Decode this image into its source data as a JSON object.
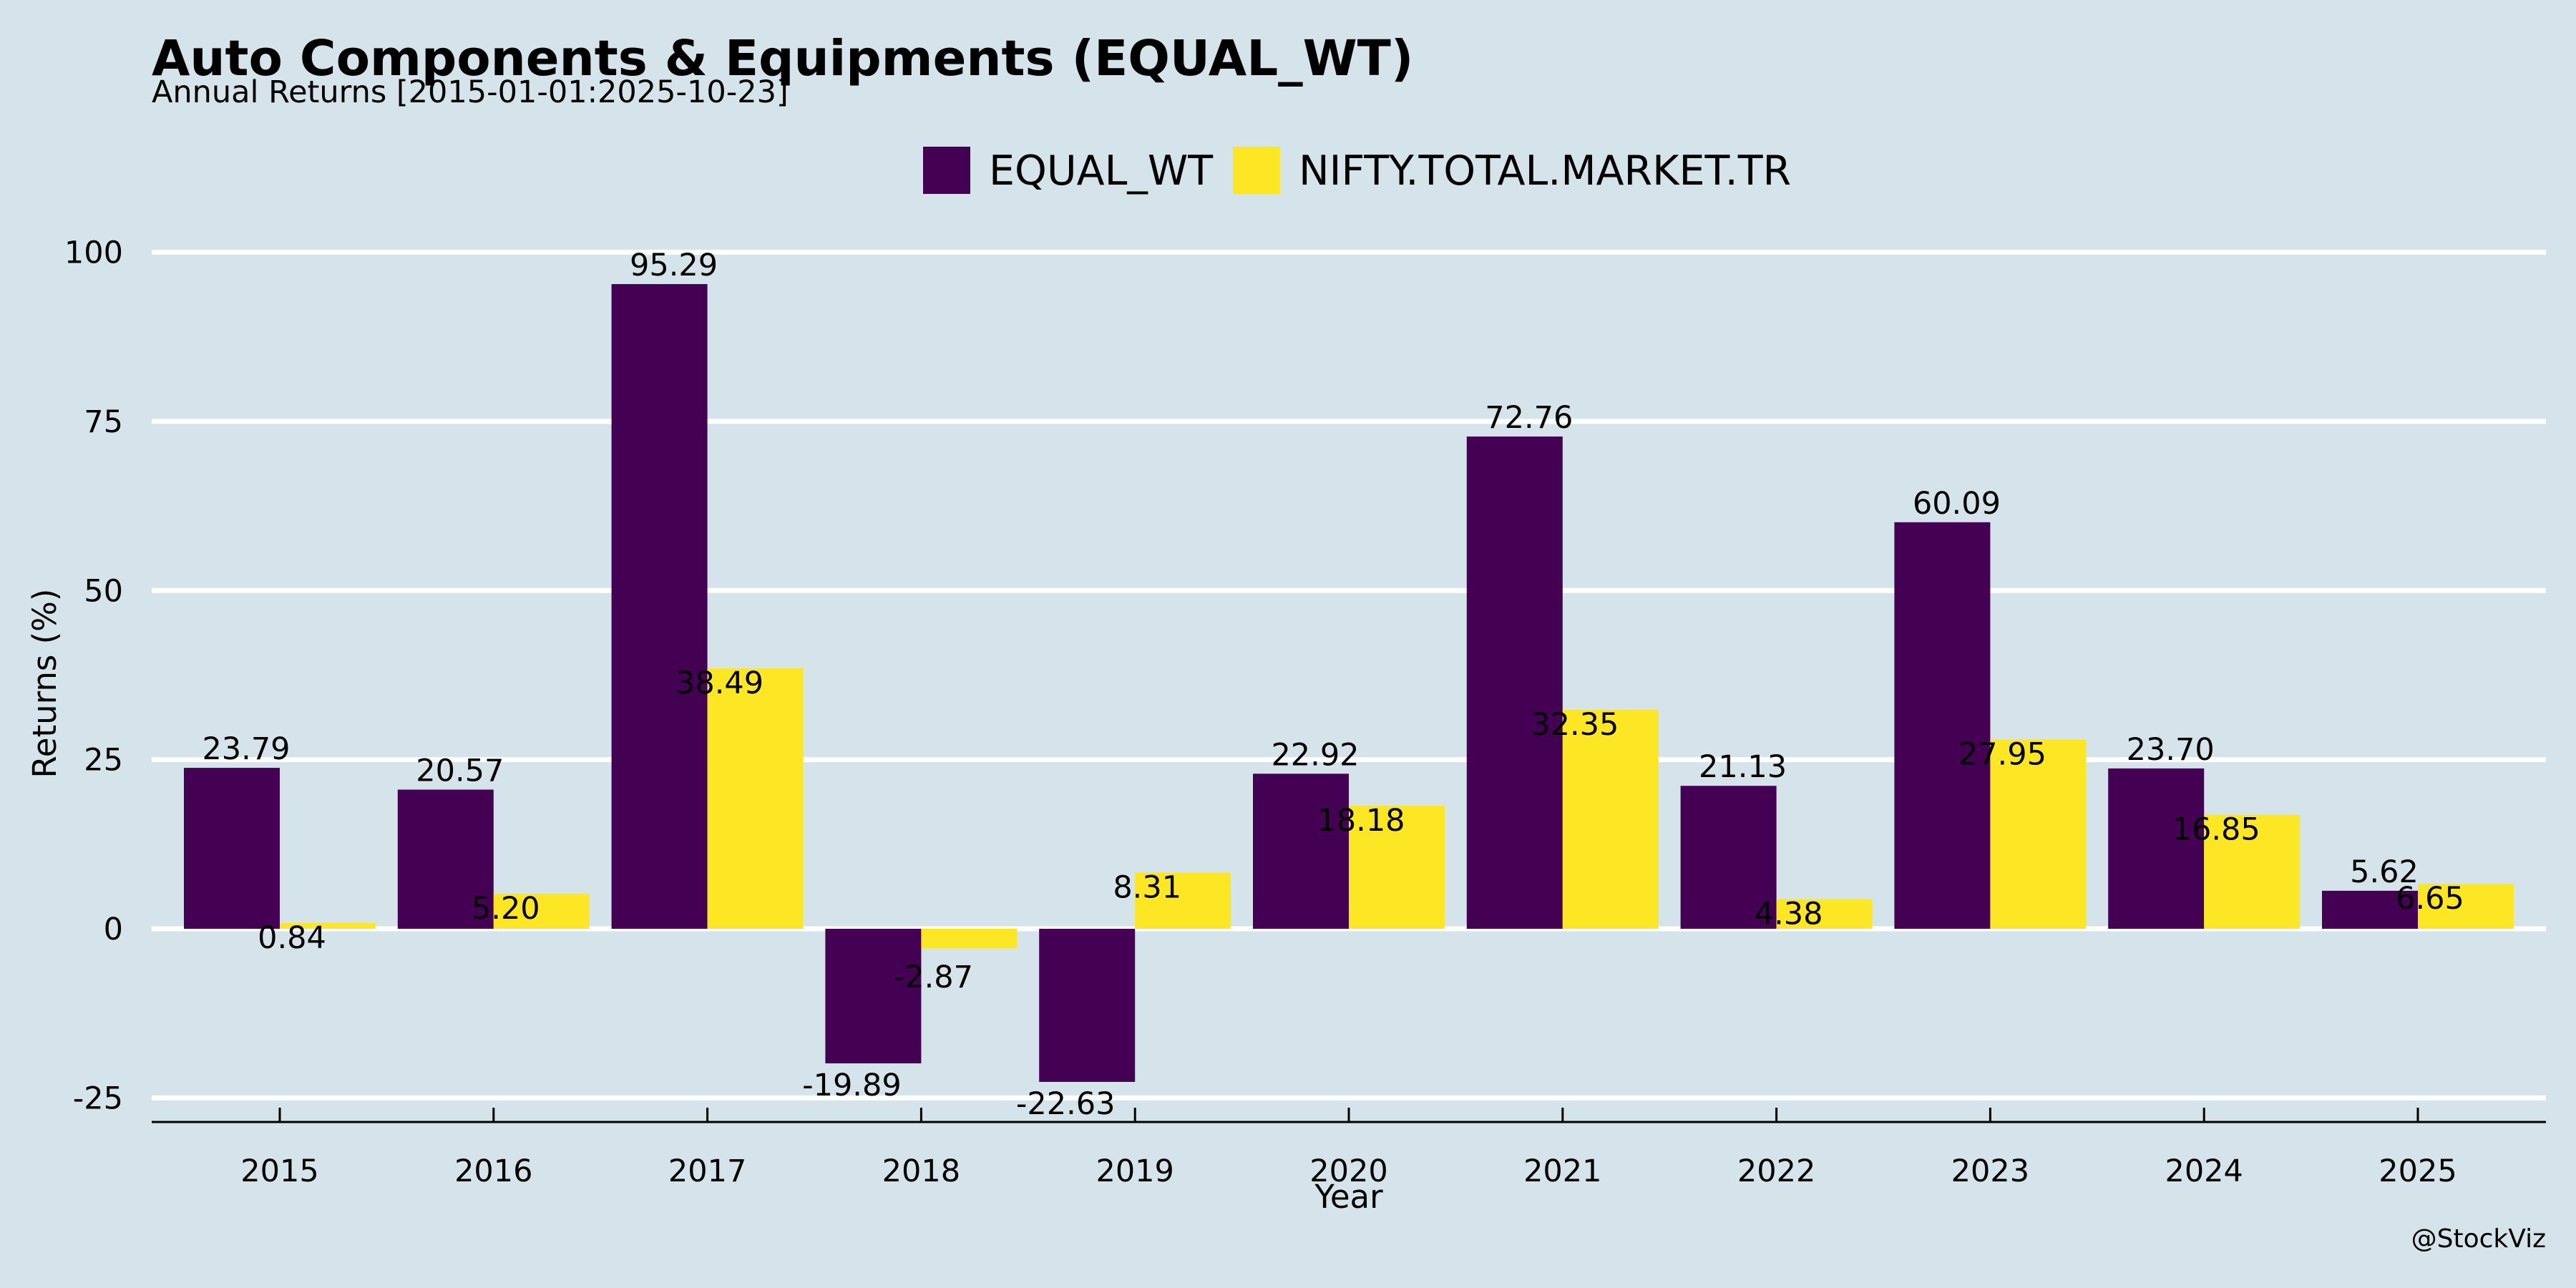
{
  "colors": {
    "background": "#d5e4eb",
    "series_equal_wt": "#440154",
    "series_nifty": "#fde725",
    "grid": "#ffffff"
  },
  "caption": "@StockViz",
  "chart_data": {
    "type": "bar",
    "title": "Auto Components & Equipments (EQUAL_WT)",
    "subtitle": "Annual Returns [2015-01-01:2025-10-23]",
    "xlabel": "Year",
    "ylabel": "Returns (%)",
    "ylim": [
      -28,
      100
    ],
    "yticks": [
      -25,
      0,
      25,
      50,
      75,
      100
    ],
    "grid": true,
    "legend_position": "top-center",
    "categories": [
      "2015",
      "2016",
      "2017",
      "2018",
      "2019",
      "2020",
      "2021",
      "2022",
      "2023",
      "2024",
      "2025"
    ],
    "series": [
      {
        "name": "EQUAL_WT",
        "color": "#440154",
        "values": [
          23.79,
          20.57,
          95.29,
          -19.89,
          -22.63,
          22.92,
          72.76,
          21.13,
          60.09,
          23.7,
          5.62
        ],
        "labels": [
          "23.79",
          "20.57",
          "95.29",
          "-19.89",
          "-22.63",
          "22.92",
          "72.76",
          "21.13",
          "60.09",
          "23.70",
          "5.62"
        ]
      },
      {
        "name": "NIFTY.TOTAL.MARKET.TR",
        "color": "#fde725",
        "values": [
          0.84,
          5.2,
          38.49,
          -2.87,
          8.31,
          18.18,
          32.35,
          4.38,
          27.95,
          16.85,
          6.65
        ],
        "labels": [
          "0.84",
          "5.20",
          "38.49",
          "-2.87",
          "8.31",
          "18.18",
          "32.35",
          "4.38",
          "27.95",
          "16.85",
          "6.65"
        ]
      }
    ]
  }
}
